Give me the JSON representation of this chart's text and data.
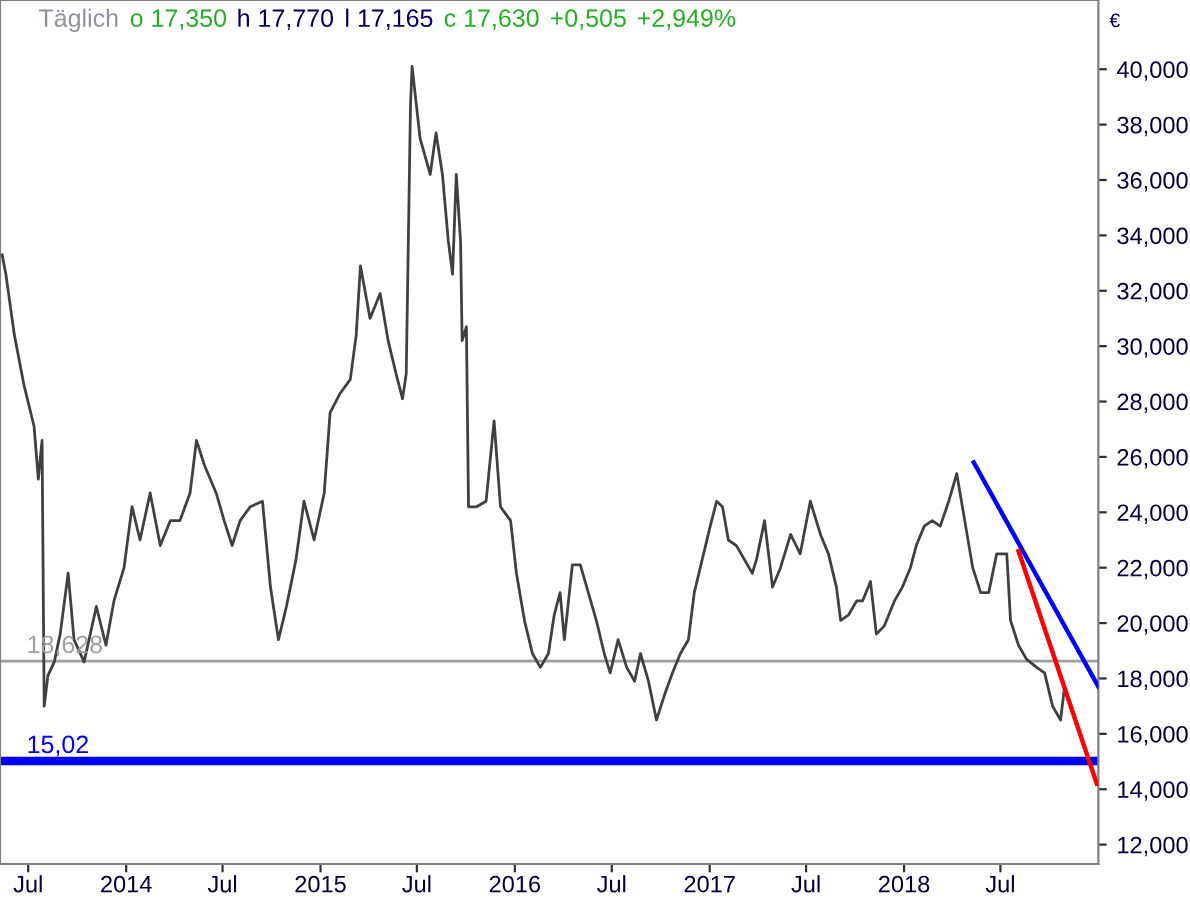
{
  "chart_data": {
    "type": "line",
    "annotations": [
      "Täglich",
      "o 17,350",
      "h 17,770",
      "l 17,165",
      "c 17,630",
      "+0,505",
      "+2,949%"
    ],
    "ylabel": "€",
    "series": [
      {
        "color": "#404040",
        "x": [
          "2013-05-13",
          "2013-05-20",
          "2013-06-05",
          "2013-06-23",
          "2013-07-12",
          "2013-07-20",
          "2013-07-27",
          "2013-07-31",
          "2013-08-07",
          "2013-08-19",
          "2013-08-30",
          "2013-09-14",
          "2013-09-25",
          "2013-10-14",
          "2013-11-06",
          "2013-11-24",
          "2013-12-09",
          "2013-12-28",
          "2014-01-12",
          "2014-01-27",
          "2014-02-15",
          "2014-03-06",
          "2014-03-25",
          "2014-04-12",
          "2014-05-01",
          "2014-05-13",
          "2014-05-28",
          "2014-06-19",
          "2014-07-04",
          "2014-07-19",
          "2014-08-03",
          "2014-08-22",
          "2014-09-14",
          "2014-09-29",
          "2014-10-14",
          "2014-10-29",
          "2014-11-16",
          "2014-12-01",
          "2014-12-20",
          "2015-01-08",
          "2015-01-19",
          "2015-02-07",
          "2015-02-26",
          "2015-03-09",
          "2015-03-17",
          "2015-04-04",
          "2015-04-23",
          "2015-05-08",
          "2015-05-23",
          "2015-06-04",
          "2015-06-11",
          "2015-06-19",
          "2015-06-22",
          "2015-07-07",
          "2015-07-26",
          "2015-08-06",
          "2015-08-18",
          "2015-08-29",
          "2015-09-06",
          "2015-09-13",
          "2015-09-21",
          "2015-09-24",
          "2015-10-02",
          "2015-10-06",
          "2015-10-21",
          "2015-11-08",
          "2015-11-23",
          "2015-12-05",
          "2015-12-24",
          "2016-01-04",
          "2016-01-19",
          "2016-02-03",
          "2016-02-18",
          "2016-03-04",
          "2016-03-15",
          "2016-03-26",
          "2016-04-03",
          "2016-04-18",
          "2016-05-03",
          "2016-05-18",
          "2016-06-02",
          "2016-06-17",
          "2016-06-28",
          "2016-07-13",
          "2016-07-29",
          "2016-08-13",
          "2016-08-24",
          "2016-09-08",
          "2016-09-23",
          "2016-10-08",
          "2016-10-23",
          "2016-11-07",
          "2016-11-22",
          "2016-12-03",
          "2016-12-18",
          "2017-01-02",
          "2017-01-14",
          "2017-01-25",
          "2017-02-05",
          "2017-02-20",
          "2017-03-07",
          "2017-03-22",
          "2017-03-30",
          "2017-04-14",
          "2017-04-29",
          "2017-05-14",
          "2017-06-02",
          "2017-06-20",
          "2017-07-09",
          "2017-07-28",
          "2017-08-12",
          "2017-08-27",
          "2017-09-04",
          "2017-09-19",
          "2017-10-04",
          "2017-10-15",
          "2017-10-30",
          "2017-11-10",
          "2017-11-25",
          "2017-12-14",
          "2017-12-29",
          "2018-01-13",
          "2018-01-24",
          "2018-02-08",
          "2018-02-23",
          "2018-03-10",
          "2018-03-26",
          "2018-04-10",
          "2018-04-25",
          "2018-05-10",
          "2018-05-25",
          "2018-06-09",
          "2018-06-24",
          "2018-07-13",
          "2018-07-20",
          "2018-08-04",
          "2018-08-19",
          "2018-09-07",
          "2018-09-22",
          "2018-10-07",
          "2018-10-22",
          "2018-10-29"
        ],
        "values": [
          33.3,
          32.6,
          30.4,
          28.6,
          27.1,
          25.2,
          26.6,
          17.0,
          18.1,
          18.6,
          19.6,
          21.8,
          19.4,
          18.6,
          20.6,
          19.2,
          20.8,
          22.0,
          24.2,
          23.0,
          24.7,
          22.8,
          23.7,
          23.7,
          24.7,
          26.6,
          25.7,
          24.7,
          23.7,
          22.8,
          23.7,
          24.2,
          24.4,
          21.3,
          19.4,
          20.6,
          22.3,
          24.4,
          23.0,
          24.7,
          27.6,
          28.3,
          28.8,
          30.4,
          32.9,
          31.0,
          31.9,
          30.2,
          29.0,
          28.1,
          29.0,
          38.7,
          40.1,
          37.5,
          36.2,
          37.7,
          36.2,
          33.8,
          32.6,
          36.2,
          33.8,
          30.2,
          30.7,
          24.2,
          24.2,
          24.4,
          27.3,
          24.2,
          23.7,
          21.8,
          20.1,
          18.9,
          18.4,
          18.9,
          20.3,
          21.1,
          19.4,
          22.1,
          22.1,
          21.1,
          20.1,
          18.9,
          18.2,
          19.4,
          18.4,
          17.9,
          18.9,
          17.9,
          16.5,
          17.4,
          18.2,
          18.9,
          19.4,
          21.1,
          22.3,
          23.5,
          24.4,
          24.2,
          23.0,
          22.8,
          22.3,
          21.8,
          22.3,
          23.7,
          21.3,
          22.0,
          23.2,
          22.5,
          24.4,
          23.2,
          22.5,
          21.3,
          20.1,
          20.3,
          20.8,
          20.8,
          21.5,
          19.6,
          19.9,
          20.8,
          21.3,
          22.0,
          22.8,
          23.5,
          23.7,
          23.5,
          24.4,
          25.4,
          23.7,
          22.0,
          21.1,
          21.1,
          22.5,
          22.5,
          20.1,
          19.2,
          18.7,
          18.4,
          18.2,
          17.0,
          16.5,
          17.63
        ]
      },
      {
        "color": "#0000ff",
        "x": [
          "2018-05-12",
          "2019-01-01"
        ],
        "values": [
          25.8,
          17.7
        ]
      },
      {
        "color": "#ff0000",
        "x": [
          "2018-08-04",
          "2018-12-29"
        ],
        "values": [
          22.6,
          14.2
        ]
      }
    ],
    "ref_lines": [
      {
        "axis": "y",
        "value": 18.628,
        "label": "18,628",
        "color": "#a0a0a0"
      },
      {
        "axis": "y",
        "value": 15.02,
        "label": "15,02",
        "color": "#0000ff"
      }
    ],
    "xlim": [
      "2013-05-09",
      "2019-01-01"
    ],
    "xticks": [
      {
        "value": "2013-07-01",
        "label": "Jul"
      },
      {
        "value": "2014-01-01",
        "label": "2014"
      },
      {
        "value": "2014-07-01",
        "label": "Jul"
      },
      {
        "value": "2015-01-01",
        "label": "2015"
      },
      {
        "value": "2015-07-01",
        "label": "Jul"
      },
      {
        "value": "2016-01-01",
        "label": "2016"
      },
      {
        "value": "2016-07-01",
        "label": "Jul"
      },
      {
        "value": "2017-01-01",
        "label": "2017"
      },
      {
        "value": "2017-07-01",
        "label": "Jul"
      },
      {
        "value": "2018-01-01",
        "label": "2018"
      },
      {
        "value": "2018-07-01",
        "label": "Jul"
      }
    ],
    "ylim": [
      11.3,
      42.5
    ],
    "yticks": [
      {
        "value": 12,
        "label": "12,000"
      },
      {
        "value": 14,
        "label": "14,000"
      },
      {
        "value": 16,
        "label": "16,000"
      },
      {
        "value": 18,
        "label": "18,000"
      },
      {
        "value": 20,
        "label": "20,000"
      },
      {
        "value": 22,
        "label": "22,000"
      },
      {
        "value": 24,
        "label": "24,000"
      },
      {
        "value": 26,
        "label": "26,000"
      },
      {
        "value": 28,
        "label": "28,000"
      },
      {
        "value": 30,
        "label": "30,000"
      },
      {
        "value": 32,
        "label": "32,000"
      },
      {
        "value": 34,
        "label": "34,000"
      },
      {
        "value": 36,
        "label": "36,000"
      },
      {
        "value": 38,
        "label": "38,000"
      },
      {
        "value": 40,
        "label": "40,000"
      }
    ],
    "grid": false,
    "legend": false,
    "marker": "none",
    "line_style": "solid"
  }
}
